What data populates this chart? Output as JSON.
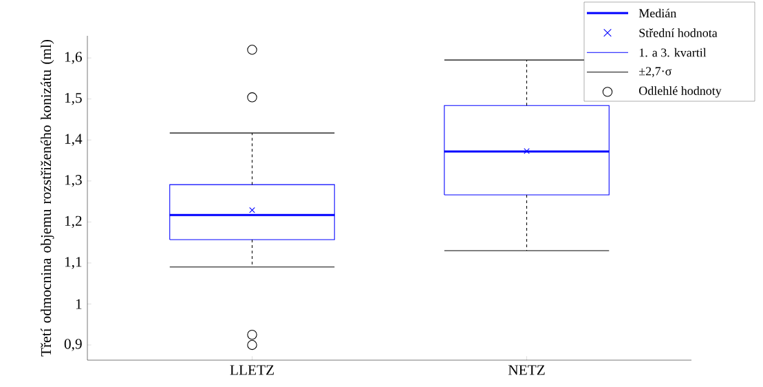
{
  "chart_data": {
    "type": "box",
    "ylabel": "Třetí odmocnina objemu rozstřiženého konizátu (ml)",
    "categories": [
      "LLETZ",
      "NETZ"
    ],
    "series": [
      {
        "color": "#0000ff",
        "boxes": [
          {
            "low": 1.09,
            "q1": 1.157,
            "median": 1.217,
            "q3": 1.291,
            "high": 1.417,
            "mean": 1.229,
            "outliers": [
              1.62,
              1.504,
              0.925,
              0.9
            ]
          },
          {
            "low": 1.13,
            "q1": 1.266,
            "median": 1.372,
            "q3": 1.484,
            "high": 1.595,
            "mean": 1.373
          }
        ]
      }
    ],
    "ylim": [
      0.863,
      1.654
    ],
    "yticks": [
      {
        "value": 0.9,
        "label": "0,9"
      },
      1,
      {
        "value": 1.1,
        "label": "1,1"
      },
      {
        "value": 1.2,
        "label": "1,2"
      },
      {
        "value": 1.3,
        "label": "1,3"
      },
      {
        "value": 1.4,
        "label": "1,4"
      },
      {
        "value": 1.5,
        "label": "1,5"
      },
      {
        "value": 1.6,
        "label": "1,6"
      }
    ],
    "annotations": [
      "Medián",
      "Střední hodnota",
      "1. a 3. kvartil",
      "±2,7·σ",
      "Odlehlé hodnoty"
    ]
  }
}
